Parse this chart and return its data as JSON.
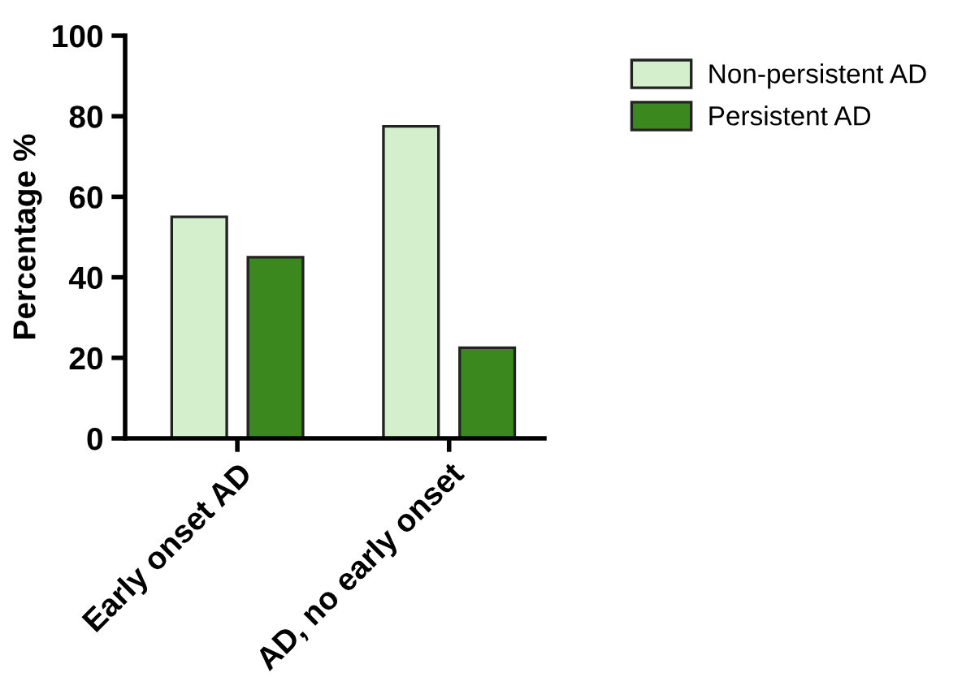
{
  "chart_data": {
    "type": "bar",
    "ylabel": "Percentage %",
    "categories": [
      "Early onset AD",
      "AD, no early onset"
    ],
    "series": [
      {
        "name": "Non-persistent AD",
        "color": "#d3efcc",
        "values": [
          55,
          77.5
        ]
      },
      {
        "name": "Persistent AD",
        "color": "#3a881e",
        "values": [
          45,
          22.5
        ]
      }
    ],
    "ylim": [
      0,
      100
    ],
    "yticks": [
      0,
      20,
      40,
      60,
      80,
      100
    ],
    "grid": false,
    "legend": "top right"
  }
}
